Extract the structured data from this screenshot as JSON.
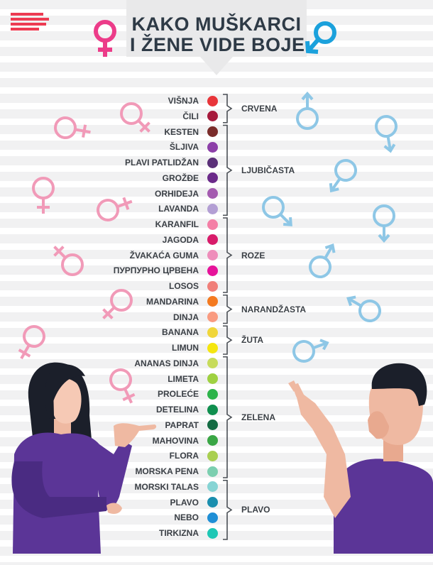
{
  "title": {
    "line1": "KAKO MUŠKARCI",
    "line2": "I ŽENE VIDE BOJE"
  },
  "logo_icon": "menu-lines-logo",
  "brand_color": "#ed3b52",
  "female_symbol_color": "#f19ab8",
  "male_symbol_color": "#8ec7e6",
  "colors": [
    {
      "name": "VIŠNJA",
      "hex": "#e8353a"
    },
    {
      "name": "ČILI",
      "hex": "#a61a3c"
    },
    {
      "name": "KESTEN",
      "hex": "#7a2c2a"
    },
    {
      "name": "ŠLJIVA",
      "hex": "#8c3fa8"
    },
    {
      "name": "PLAVI PATLIDŽAN",
      "hex": "#5a2f78"
    },
    {
      "name": "GROŽĐE",
      "hex": "#6b2a8a"
    },
    {
      "name": "ORHIDEJA",
      "hex": "#a45bb0"
    },
    {
      "name": "LAVANDA",
      "hex": "#b39fd4"
    },
    {
      "name": "KARANFIL",
      "hex": "#f47fa6"
    },
    {
      "name": "JAGODA",
      "hex": "#d81b6a"
    },
    {
      "name": "ŽVAKAĆA GUMA",
      "hex": "#ee8ebb"
    },
    {
      "name": "ПУРПУРНО ЦРВЕНА",
      "hex": "#e6139a"
    },
    {
      "name": "LOSOS",
      "hex": "#f07f79"
    },
    {
      "name": "MANDARINA",
      "hex": "#f47a20"
    },
    {
      "name": "DINJA",
      "hex": "#f99b80"
    },
    {
      "name": "BANANA",
      "hex": "#f0d63a"
    },
    {
      "name": "LIMUN",
      "hex": "#f5e60f"
    },
    {
      "name": "ANANAS DINJA",
      "hex": "#c7db5a"
    },
    {
      "name": "LIMETA",
      "hex": "#9fd141"
    },
    {
      "name": "PROLEĆE",
      "hex": "#2db34a"
    },
    {
      "name": "DETELINA",
      "hex": "#0f8f4e"
    },
    {
      "name": "PAPRAT",
      "hex": "#146b43"
    },
    {
      "name": "MAHOVINA",
      "hex": "#3aa645"
    },
    {
      "name": "FLORA",
      "hex": "#a9cf50"
    },
    {
      "name": "MORSKA PENA",
      "hex": "#7ccfb0"
    },
    {
      "name": "MORSKI TALAS",
      "hex": "#86d4d4"
    },
    {
      "name": "PLAVO",
      "hex": "#1a8eae"
    },
    {
      "name": "NEBO",
      "hex": "#1f8fd6"
    },
    {
      "name": "TIRKIZNA",
      "hex": "#1ec7b5"
    }
  ],
  "groups": [
    {
      "name": "CRVENA",
      "start": 0,
      "end": 1
    },
    {
      "name": "LJUBIČASTA",
      "start": 2,
      "end": 7
    },
    {
      "name": "ROZE",
      "start": 8,
      "end": 12
    },
    {
      "name": "NARANDŽASTA",
      "start": 13,
      "end": 14
    },
    {
      "name": "ŽUTA",
      "start": 15,
      "end": 16
    },
    {
      "name": "ZELENA",
      "start": 17,
      "end": 24
    },
    {
      "name": "PLAVO",
      "start": 25,
      "end": 28
    }
  ],
  "illustrations": {
    "woman": "woman-pointing-illustration",
    "man": "man-thinking-illustration"
  }
}
